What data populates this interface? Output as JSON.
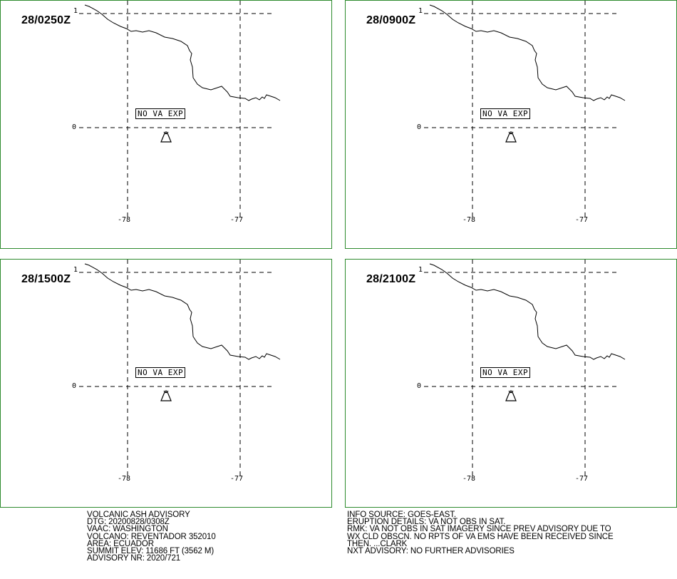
{
  "colors": {
    "panel_border": "#2e8b2e",
    "lines": "#000000",
    "background": "#ffffff"
  },
  "panels": [
    {
      "time": "28/0250Z",
      "status": "NO VA EXP",
      "lon_labels": [
        "-78",
        "-77"
      ],
      "lat_label": "0",
      "lat_top": "1"
    },
    {
      "time": "28/0900Z",
      "status": "NO VA EXP",
      "lon_labels": [
        "-78",
        "-77"
      ],
      "lat_label": "0",
      "lat_top": "1"
    },
    {
      "time": "28/1500Z",
      "status": "NO VA EXP",
      "lon_labels": [
        "-78",
        "-77"
      ],
      "lat_label": "0",
      "lat_top": "1"
    },
    {
      "time": "28/2100Z",
      "status": "NO VA EXP",
      "lon_labels": [
        "-78",
        "-77"
      ],
      "lat_label": "0",
      "lat_top": "1"
    }
  ],
  "map_icons": [
    "coastline-line",
    "volcano-icon"
  ],
  "advisory_left": [
    "VOLCANIC ASH ADVISORY",
    "DTG: 20200828/0308Z",
    "VAAC: WASHINGTON",
    "VOLCANO: REVENTADOR 352010",
    "AREA: ECUADOR",
    "SUMMIT ELEV: 11686 FT (3562 M)",
    "ADVISORY NR: 2020/721"
  ],
  "advisory_right": [
    "INFO SOURCE: GOES-EAST.",
    "ERUPTION DETAILS: VA NOT OBS IN SAT.",
    "RMK: VA NOT OBS IN SAT IMAGERY SINCE PREV ADVISORY DUE TO",
    "WX CLD OBSCN. NO RPTS OF VA EMS HAVE BEEN RECEIVED SINCE",
    "THEN. ...CLARK",
    "NXT ADVISORY: NO FURTHER ADVISORIES"
  ]
}
